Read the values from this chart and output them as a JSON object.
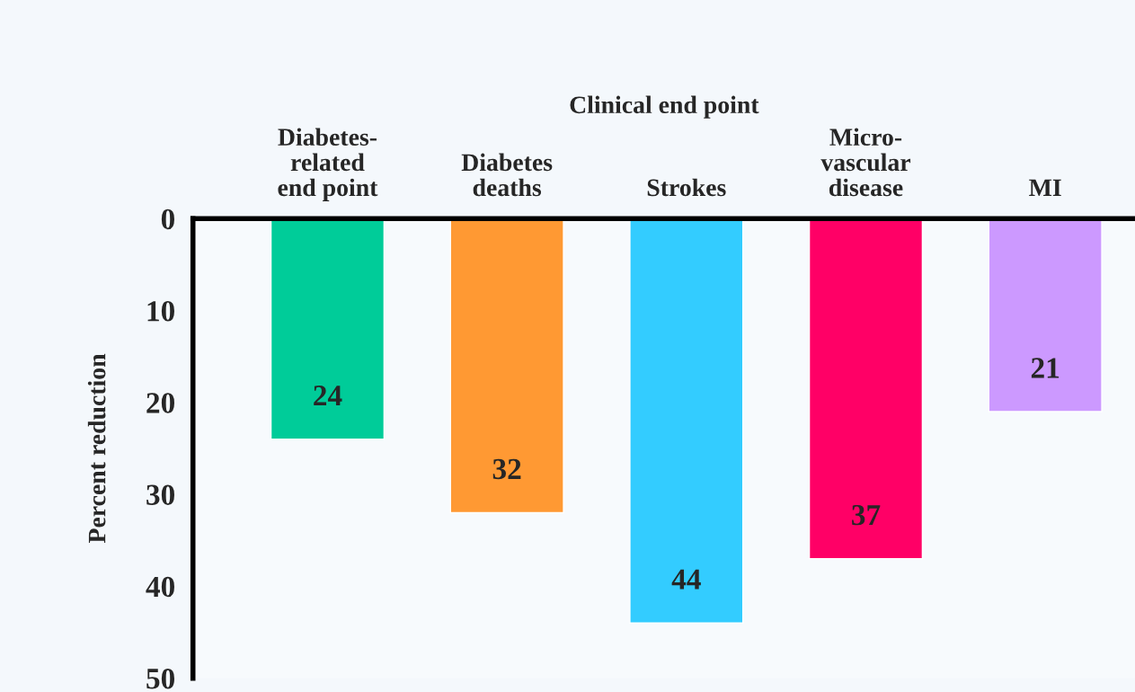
{
  "chart_data": {
    "type": "bar",
    "xlabel": "Clinical end point",
    "ylabel": "Percent reduction",
    "categories": [
      "Diabetes-\nrelated\nend point",
      "Diabetes\ndeaths",
      "Strokes",
      "Micro-\nvascular\ndisease",
      "MI"
    ],
    "values": [
      24,
      32,
      44,
      37,
      21
    ],
    "colors": [
      "#00cc99",
      "#ff9933",
      "#33ccff",
      "#ff0066",
      "#cc99ff"
    ],
    "ylim": [
      50,
      0
    ],
    "yticks": [
      0,
      10,
      20,
      30,
      40,
      50
    ],
    "data_labels": true,
    "grid": false
  }
}
